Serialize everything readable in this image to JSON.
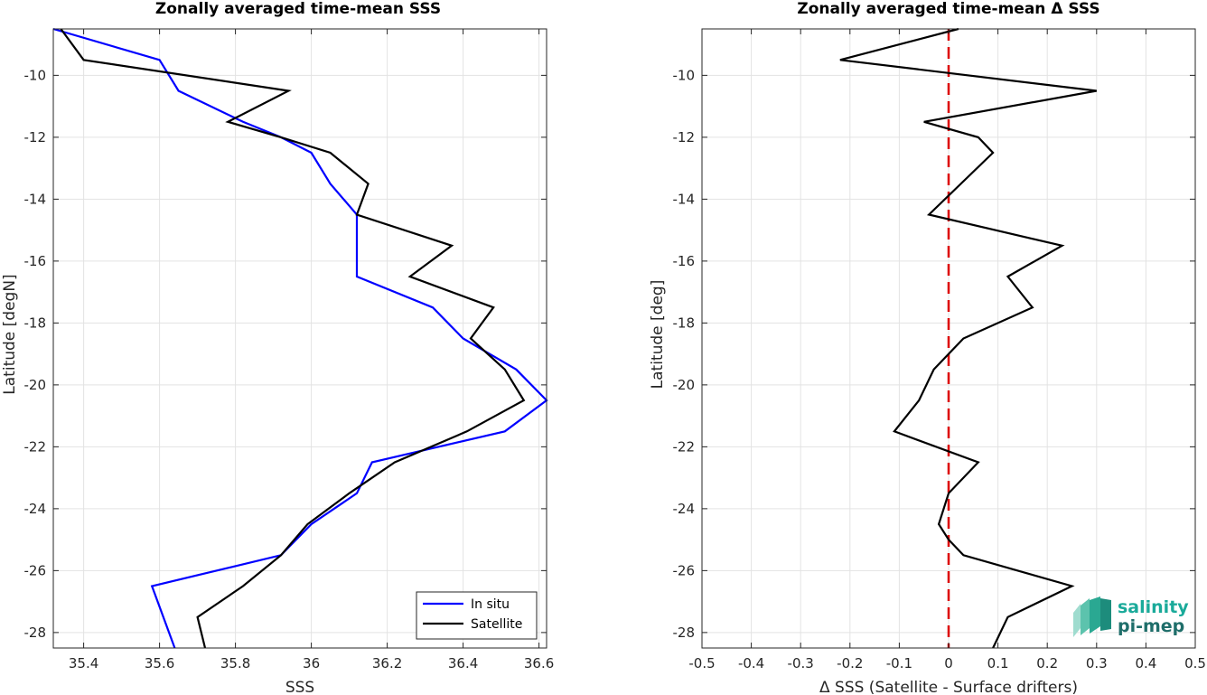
{
  "chart_data": [
    {
      "type": "line",
      "title": "Zonally averaged time-mean SSS",
      "xlabel": "SSS",
      "ylabel": "Latitude [degN]",
      "xlim": [
        35.32,
        36.62
      ],
      "ylim": [
        -28.5,
        -8.5
      ],
      "xticks": [
        35.4,
        35.6,
        35.8,
        36,
        36.2,
        36.4,
        36.6
      ],
      "xtick_labels": [
        "35.4",
        "35.6",
        "35.8",
        "36",
        "36.2",
        "36.4",
        "36.6"
      ],
      "yticks": [
        -10,
        -12,
        -14,
        -16,
        -18,
        -20,
        -22,
        -24,
        -26,
        -28
      ],
      "ytick_labels": [
        "-10",
        "-12",
        "-14",
        "-16",
        "-18",
        "-20",
        "-22",
        "-24",
        "-26",
        "-28"
      ],
      "grid": true,
      "legend_position": "bottom-right",
      "series": [
        {
          "name": "In situ",
          "color": "#0000ff",
          "x": [
            35.32,
            35.6,
            35.65,
            35.82,
            35.92,
            36.0,
            36.05,
            36.12,
            36.12,
            36.12,
            36.32,
            36.4,
            36.54,
            36.62,
            36.51,
            36.16,
            36.12,
            36.0,
            35.92,
            35.58,
            35.64
          ],
          "y": [
            -8.5,
            -9.5,
            -10.5,
            -11.5,
            -12.0,
            -12.5,
            -13.5,
            -14.5,
            -15.5,
            -16.5,
            -17.5,
            -18.5,
            -19.5,
            -20.5,
            -21.5,
            -22.5,
            -23.5,
            -24.5,
            -25.5,
            -26.5,
            -28.5
          ]
        },
        {
          "name": "Satellite",
          "color": "#000000",
          "x": [
            35.34,
            35.4,
            35.94,
            35.78,
            35.92,
            36.05,
            36.15,
            36.12,
            36.37,
            36.26,
            36.48,
            36.42,
            36.51,
            36.56,
            36.41,
            36.22,
            36.1,
            35.99,
            35.92,
            35.82,
            35.7,
            35.72
          ],
          "y": [
            -8.5,
            -9.5,
            -10.5,
            -11.5,
            -12.0,
            -12.5,
            -13.5,
            -14.5,
            -15.5,
            -16.5,
            -17.5,
            -18.5,
            -19.5,
            -20.5,
            -21.5,
            -22.5,
            -23.5,
            -24.5,
            -25.5,
            -26.5,
            -27.5,
            -28.5
          ]
        }
      ]
    },
    {
      "type": "line",
      "title": "Zonally averaged time-mean Δ SSS",
      "xlabel": "Δ SSS (Satellite - Surface drifters)",
      "ylabel": "Latitude [deg]",
      "xlim": [
        -0.5,
        0.5
      ],
      "ylim": [
        -28.5,
        -8.5
      ],
      "xticks": [
        -0.5,
        -0.4,
        -0.3,
        -0.2,
        -0.1,
        0,
        0.1,
        0.2,
        0.3,
        0.4,
        0.5
      ],
      "xtick_labels": [
        "-0.5",
        "-0.4",
        "-0.3",
        "-0.2",
        "-0.1",
        "0",
        "0.1",
        "0.2",
        "0.3",
        "0.4",
        "0.5"
      ],
      "yticks": [
        -10,
        -12,
        -14,
        -16,
        -18,
        -20,
        -22,
        -24,
        -26,
        -28
      ],
      "ytick_labels": [
        "-10",
        "-12",
        "-14",
        "-16",
        "-18",
        "-20",
        "-22",
        "-24",
        "-26",
        "-28"
      ],
      "grid": true,
      "reference_line": {
        "x": 0,
        "color": "#dd0000",
        "style": "dashed"
      },
      "series": [
        {
          "color": "#000000",
          "x": [
            0.02,
            -0.22,
            0.3,
            -0.05,
            0.06,
            0.09,
            -0.04,
            0.23,
            0.12,
            0.17,
            0.03,
            -0.03,
            -0.06,
            -0.11,
            0.06,
            0.0,
            -0.02,
            0.0,
            0.03,
            0.25,
            0.12,
            0.09
          ],
          "y": [
            -8.5,
            -9.5,
            -10.5,
            -11.5,
            -12.0,
            -12.5,
            -14.5,
            -15.5,
            -16.5,
            -17.5,
            -18.5,
            -19.5,
            -20.5,
            -21.5,
            -22.5,
            -23.5,
            -24.5,
            -25.0,
            -25.5,
            -26.5,
            -27.5,
            -28.5
          ]
        }
      ]
    }
  ],
  "logo": {
    "line1": "salinity",
    "line2": "pi-mep",
    "color1": "#1aaa9a",
    "color2": "#1f6e6a"
  }
}
